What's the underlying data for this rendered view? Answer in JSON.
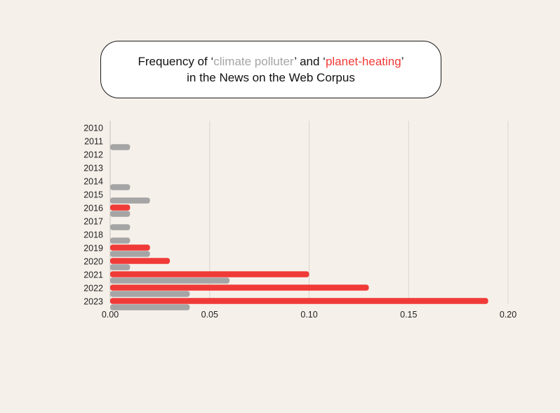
{
  "title": {
    "part1": "Frequency of ‘",
    "kw1": "climate polluter",
    "part2": "’ and ‘",
    "kw2": "planet-heating",
    "part3": "’ in the News on the Web Corpus"
  },
  "colors": {
    "background": "#f6f0ea",
    "climate_polluter": "#a5a5a5",
    "planet_heating": "#f03a37",
    "grid": "#d9d4cf"
  },
  "chart_data": {
    "type": "bar",
    "orientation": "horizontal",
    "title": "Frequency of ‘climate polluter’ and ‘planet-heating’ in the News on the Web Corpus",
    "categories": [
      "2010",
      "2011",
      "2012",
      "2013",
      "2014",
      "2015",
      "2016",
      "2017",
      "2018",
      "2019",
      "2020",
      "2021",
      "2022",
      "2023"
    ],
    "series": [
      {
        "name": "planet-heating",
        "color": "#f03a37",
        "values": [
          0,
          0,
          0,
          0,
          0,
          0,
          0.01,
          0,
          0,
          0.02,
          0.03,
          0.1,
          0.13,
          0.19
        ]
      },
      {
        "name": "climate polluter",
        "color": "#a5a5a5",
        "values": [
          0,
          0.01,
          0,
          0,
          0.01,
          0.02,
          0.01,
          0.01,
          0.01,
          0.02,
          0.01,
          0.06,
          0.04,
          0.04
        ]
      }
    ],
    "xlim": [
      0,
      0.2
    ],
    "xticks": [
      "0.00",
      "0.05",
      "0.10",
      "0.15",
      "0.20"
    ],
    "grid": "vertical",
    "xlabel": "",
    "ylabel": ""
  }
}
